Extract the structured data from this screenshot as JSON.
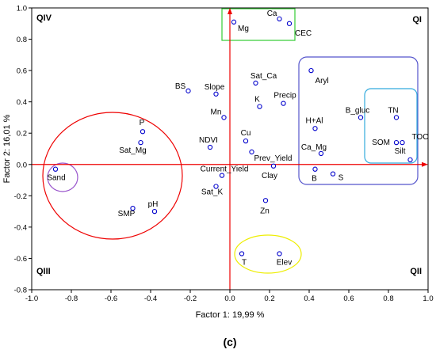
{
  "chart_data": {
    "type": "scatter",
    "title": "",
    "xlabel": "Factor 1: 19,99 %",
    "ylabel": "Factor 2: 16,01 %",
    "caption": "(c)",
    "xlim": [
      -1.0,
      1.0
    ],
    "ylim": [
      -0.8,
      1.0
    ],
    "xticks": [
      "-1.0",
      "-0.8",
      "-0.6",
      "-0.4",
      "-0.2",
      "0.0",
      "0.2",
      "0.4",
      "0.6",
      "0.8",
      "1.0"
    ],
    "yticks": [
      "1.0",
      "0.8",
      "0.6",
      "0.4",
      "0.2",
      "0.0",
      "-0.2",
      "-0.4",
      "-0.6",
      "-0.8"
    ],
    "grid": false,
    "quadrants": [
      "QIV",
      "QI",
      "QIII",
      "QII"
    ],
    "colors": {
      "point": "#0000cc",
      "axis_line": "#ee0000",
      "green_box": "#33cc33",
      "purple_box": "#5555cc",
      "blue_box": "#33aadd",
      "red_ellipse": "#ee0000",
      "purple_ellipse": "#9955cc",
      "yellow_ellipse": "#eeee00"
    },
    "points": [
      {
        "label": "Ca",
        "x": 0.25,
        "y": 0.93
      },
      {
        "label": "Mg",
        "x": 0.02,
        "y": 0.91
      },
      {
        "label": "CEC",
        "x": 0.3,
        "y": 0.9
      },
      {
        "label": "Aryl",
        "x": 0.41,
        "y": 0.6
      },
      {
        "label": "Sat_Ca",
        "x": 0.13,
        "y": 0.52
      },
      {
        "label": "BS",
        "x": -0.21,
        "y": 0.47
      },
      {
        "label": "Slope",
        "x": -0.07,
        "y": 0.45
      },
      {
        "label": "Precip",
        "x": 0.27,
        "y": 0.39
      },
      {
        "label": "K",
        "x": 0.15,
        "y": 0.37
      },
      {
        "label": "B_gluc",
        "x": 0.66,
        "y": 0.3
      },
      {
        "label": "TN",
        "x": 0.84,
        "y": 0.3
      },
      {
        "label": "Mn",
        "x": -0.03,
        "y": 0.3
      },
      {
        "label": "H+Al",
        "x": 0.43,
        "y": 0.23
      },
      {
        "label": "P",
        "x": -0.44,
        "y": 0.21
      },
      {
        "label": "Cu",
        "x": 0.08,
        "y": 0.15
      },
      {
        "label": "Sat_Mg",
        "x": -0.45,
        "y": 0.14
      },
      {
        "label": "SOM",
        "x": 0.84,
        "y": 0.14
      },
      {
        "label": "TOC",
        "x": 0.87,
        "y": 0.14
      },
      {
        "label": "NDVI",
        "x": -0.1,
        "y": 0.11
      },
      {
        "label": "Prev_Yield",
        "x": 0.11,
        "y": 0.08
      },
      {
        "label": "Ca_Mg",
        "x": 0.46,
        "y": 0.07
      },
      {
        "label": "Silt",
        "x": 0.91,
        "y": 0.03
      },
      {
        "label": "Sand",
        "x": -0.88,
        "y": -0.03
      },
      {
        "label": "Clay",
        "x": 0.22,
        "y": -0.01
      },
      {
        "label": "B",
        "x": 0.43,
        "y": -0.03
      },
      {
        "label": "S",
        "x": 0.52,
        "y": -0.06
      },
      {
        "label": "Current_Yield",
        "x": -0.04,
        "y": -0.07
      },
      {
        "label": "Sat_K",
        "x": -0.07,
        "y": -0.14
      },
      {
        "label": "Zn",
        "x": 0.18,
        "y": -0.23
      },
      {
        "label": "SMP",
        "x": -0.49,
        "y": -0.28
      },
      {
        "label": "pH",
        "x": -0.38,
        "y": -0.3
      },
      {
        "label": "T",
        "x": 0.06,
        "y": -0.57
      },
      {
        "label": "Elev",
        "x": 0.25,
        "y": -0.57
      }
    ]
  }
}
